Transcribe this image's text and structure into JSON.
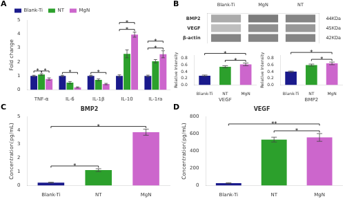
{
  "chart_data": [
    {
      "type": "bar",
      "panel_label": "A",
      "ylabel": "Fold change",
      "categories": [
        "TNF-α",
        "IL-6",
        "IL-1β",
        "IL-10",
        "IL-1ra"
      ],
      "series": [
        {
          "name": "Blank-Ti",
          "color": "#1a1a8c",
          "values": [
            1.0,
            1.0,
            1.0,
            1.0,
            1.0
          ],
          "errors": [
            0.05,
            0.05,
            0.05,
            0.08,
            0.06
          ]
        },
        {
          "name": "NT",
          "color": "#2ca02c",
          "values": [
            1.1,
            0.52,
            0.72,
            2.58,
            2.05
          ],
          "errors": [
            0.06,
            0.08,
            0.07,
            0.28,
            0.12
          ]
        },
        {
          "name": "MgN",
          "color": "#cc66cc",
          "values": [
            0.78,
            0.18,
            0.42,
            3.95,
            2.55
          ],
          "errors": [
            0.08,
            0.04,
            0.05,
            0.18,
            0.25
          ]
        }
      ],
      "ylim": [
        0,
        5.0
      ],
      "yticks": [
        0,
        1,
        2,
        3,
        4,
        5
      ],
      "grid": false,
      "legend": "upper left",
      "annotations": [
        {
          "text": "*",
          "category": "TNF-α",
          "from": "Blank-Ti",
          "to": "NT"
        },
        {
          "text": "*",
          "category": "TNF-α",
          "from": "NT",
          "to": "MgN"
        },
        {
          "text": "*",
          "category": "IL-6",
          "from": "Blank-Ti",
          "to": "MgN"
        },
        {
          "text": "*",
          "category": "IL-1β",
          "from": "Blank-Ti",
          "to": "MgN"
        },
        {
          "text": "*",
          "category": "IL-10",
          "from": "Blank-Ti",
          "to": "MgN"
        },
        {
          "text": "*",
          "category": "IL-10",
          "from": "Blank-Ti",
          "to": "MgN"
        },
        {
          "text": "*",
          "category": "IL-1ra",
          "from": "Blank-Ti",
          "to": "MgN"
        },
        {
          "text": "*",
          "category": "IL-1ra",
          "from": "Blank-Ti",
          "to": "MgN"
        }
      ]
    },
    {
      "type": "heatmap",
      "panel_label": "B",
      "categories": [
        "Blank-Ti",
        "MgN",
        "NT"
      ],
      "y_categories": [
        "BMP2",
        "VEGF",
        "β-actin"
      ],
      "y2_categories": [
        "44KDa",
        "45KDa",
        "42KDa"
      ],
      "values": [
        [
          0.45,
          0.7,
          0.65
        ],
        [
          0.35,
          0.6,
          0.55
        ],
        [
          0.65,
          0.65,
          0.65
        ]
      ],
      "color": "#444444",
      "grid": false
    },
    {
      "type": "bar",
      "xlabel": "VEGF",
      "ylabel": "Relative Intensity",
      "categories": [
        "Blank-Ti",
        "NT",
        "MgN"
      ],
      "values": [
        0.28,
        0.55,
        0.62
      ],
      "errors": [
        0.02,
        0.03,
        0.04
      ],
      "colors": [
        "#1a1a8c",
        "#2ca02c",
        "#cc66cc"
      ],
      "ylim": [
        0.0,
        0.9
      ],
      "yticks": [
        {
          "value": 0.0,
          "label": "0.0"
        },
        0.2,
        0.4,
        0.6,
        0.8
      ],
      "grid": false,
      "annotations": [
        {
          "text": "*",
          "from": "Blank-Ti",
          "to": "MgN"
        },
        {
          "text": "*",
          "from": "NT",
          "to": "MgN"
        }
      ]
    },
    {
      "type": "bar",
      "xlabel": "BMP2",
      "ylabel": "Relative Intensity",
      "categories": [
        "Blank-Ti",
        "NT",
        "MgN"
      ],
      "values": [
        0.4,
        0.6,
        0.65
      ],
      "errors": [
        0.02,
        0.03,
        0.04
      ],
      "colors": [
        "#1a1a8c",
        "#2ca02c",
        "#cc66cc"
      ],
      "ylim": [
        0.0,
        0.9
      ],
      "yticks": [
        {
          "value": 0.0,
          "label": "0.0"
        },
        0.2,
        0.4,
        0.6,
        0.8
      ],
      "grid": false,
      "annotations": [
        {
          "text": "*",
          "from": "Blank-Ti",
          "to": "MgN"
        },
        {
          "text": "*",
          "from": "NT",
          "to": "MgN"
        }
      ]
    },
    {
      "type": "bar",
      "panel_label": "C",
      "title": "BMP2",
      "ylabel": "Concentration(pg/mL)",
      "categories": [
        "Blank-Ti",
        "NT",
        "MgN"
      ],
      "values": [
        0.22,
        1.13,
        3.88
      ],
      "errors": [
        0.03,
        0.1,
        0.22
      ],
      "colors": [
        "#1a1a8c",
        "#2ca02c",
        "#cc66cc"
      ],
      "ylim": [
        0,
        5
      ],
      "yticks": [
        0,
        1,
        2,
        3,
        4,
        5
      ],
      "grid": false,
      "annotations": [
        {
          "text": "*",
          "from": "Blank-Ti",
          "to": "NT"
        },
        {
          "text": "*",
          "from": "Blank-Ti",
          "to": "MgN"
        }
      ]
    },
    {
      "type": "bar",
      "panel_label": "D",
      "title": "VEGF",
      "ylabel": "Concentration(pg/mL)",
      "categories": [
        "Blank-Ti",
        "NT",
        "MgN"
      ],
      "values": [
        28,
        535,
        560
      ],
      "errors": [
        5,
        28,
        45
      ],
      "colors": [
        "#1a1a8c",
        "#2ca02c",
        "#cc66cc"
      ],
      "ylim": [
        0,
        800
      ],
      "yticks": [
        0,
        200,
        400,
        600,
        800
      ],
      "grid": false,
      "annotations": [
        {
          "text": "**",
          "from": "Blank-Ti",
          "to": "MgN"
        },
        {
          "text": "*",
          "from": "NT",
          "to": "MgN"
        }
      ]
    }
  ]
}
